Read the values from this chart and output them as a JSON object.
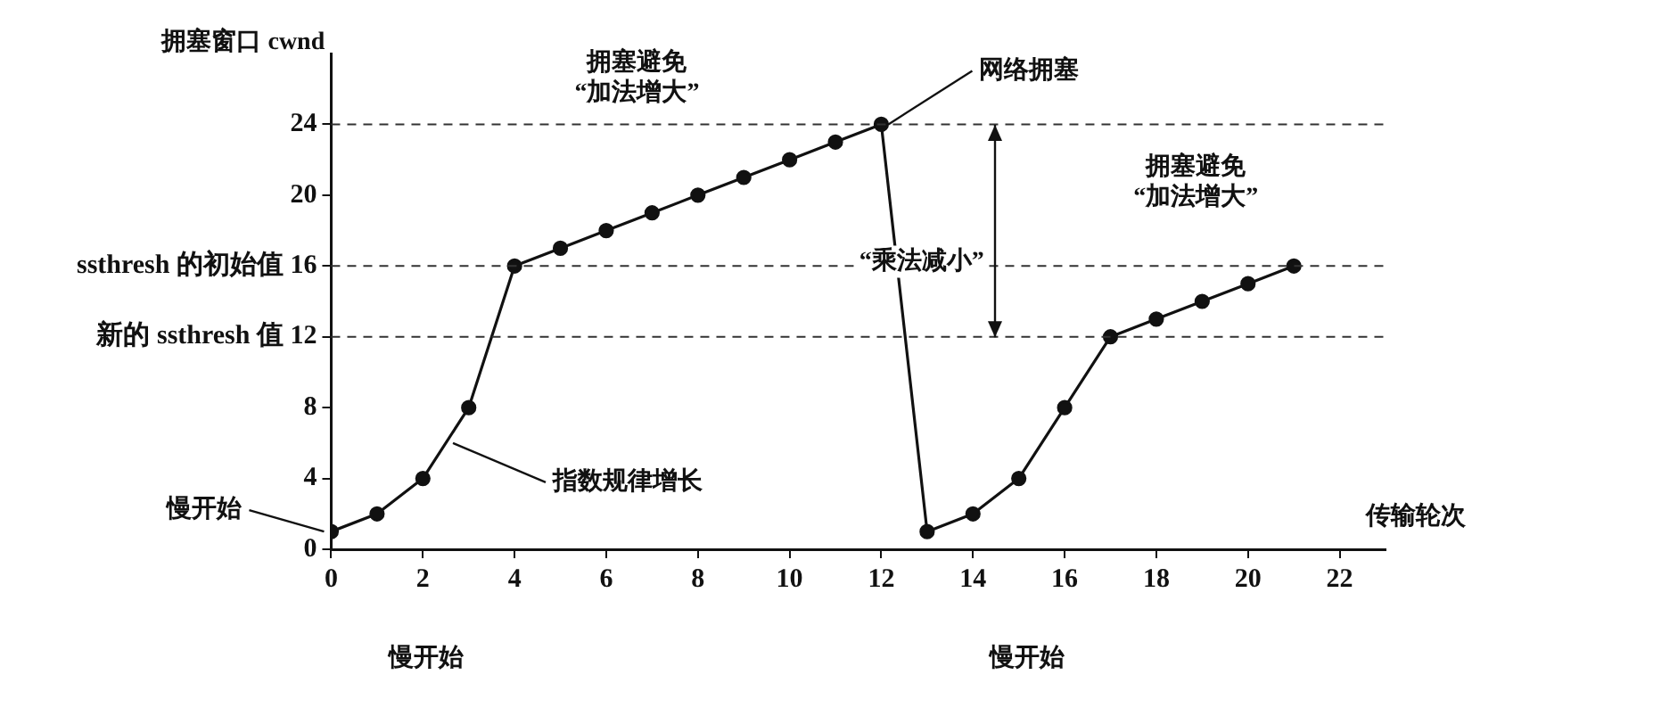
{
  "chart_data": {
    "type": "line",
    "ylabel": "拥塞窗口 cwnd",
    "xlabel": "传输轮次",
    "x": [
      0,
      1,
      2,
      3,
      4,
      5,
      6,
      7,
      8,
      9,
      10,
      11,
      12,
      13,
      14,
      15,
      16,
      17,
      18,
      19,
      20,
      21
    ],
    "values": [
      1,
      2,
      4,
      8,
      16,
      17,
      18,
      19,
      20,
      21,
      22,
      23,
      24,
      1,
      2,
      4,
      8,
      12,
      13,
      14,
      15,
      16
    ],
    "color": "#111111",
    "marker": "circle",
    "line_style": "solid",
    "grid": false,
    "legend": false,
    "xlim": [
      0,
      23
    ],
    "xticks": [
      0,
      2,
      4,
      6,
      8,
      10,
      12,
      14,
      16,
      18,
      20,
      22
    ],
    "ylim": [
      0,
      28
    ],
    "yticks": [
      0,
      4,
      8,
      {
        "value": 12,
        "label": "新的 ssthresh 值 12"
      },
      {
        "value": 16,
        "label": "ssthresh 的初始值 16"
      },
      20,
      24
    ],
    "ref_lines": [
      {
        "axis": "y",
        "value": 24,
        "line_style": "dashed"
      },
      {
        "axis": "y",
        "value": 16,
        "line_style": "dashed"
      },
      {
        "axis": "y",
        "value": 12,
        "line_style": "dashed"
      }
    ],
    "annotations": [
      "拥塞避免\n“加法增大”",
      {
        "text": "网络拥塞",
        "x": 12,
        "y": 24
      },
      "“乘法减小”",
      "拥塞避免\n“加法增大”",
      {
        "text": "指数规律增长",
        "x": 2.5,
        "y": 6
      },
      {
        "text": "慢开始",
        "x": 0,
        "y": 1
      },
      "慢开始",
      "慢开始"
    ]
  }
}
